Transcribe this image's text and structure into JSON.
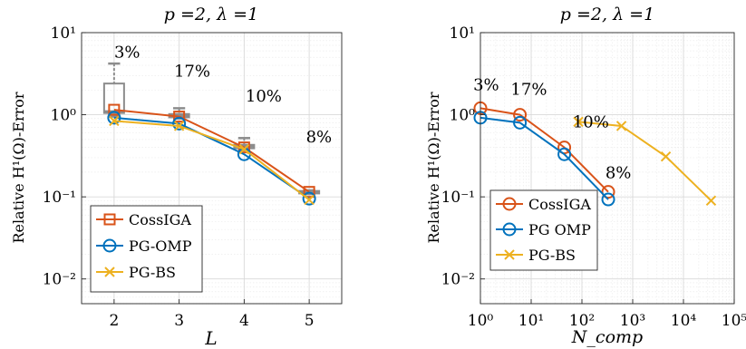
{
  "chart_data": [
    {
      "type": "line",
      "title": "p =2, λ =1",
      "xlabel": "L",
      "ylabel": "Relative H¹(Ω)-Error",
      "x_scale": "linear",
      "y_scale": "log",
      "xlim": [
        1.5,
        5.5
      ],
      "ylim": [
        0.005,
        10
      ],
      "x_ticks": [
        "2",
        "3",
        "4",
        "5"
      ],
      "y_ticks": [
        "10⁻²",
        "10⁻¹",
        "10⁰",
        "10¹"
      ],
      "grid": true,
      "legend_position": "bottom-left",
      "series": [
        {
          "name": "CossIGA",
          "color": "#d95319",
          "marker": "square",
          "x": [
            2,
            3,
            4,
            5
          ],
          "y": [
            1.15,
            0.95,
            0.4,
            0.115
          ]
        },
        {
          "name": "PG-OMP",
          "color": "#0072bd",
          "marker": "circle",
          "x": [
            2,
            3,
            4,
            5
          ],
          "y": [
            0.92,
            0.78,
            0.33,
            0.095
          ]
        },
        {
          "name": "PG-BS",
          "color": "#edb120",
          "marker": "x",
          "x": [
            2,
            3,
            4,
            5
          ],
          "y": [
            0.84,
            0.73,
            0.38,
            0.092
          ]
        }
      ],
      "boxplots": [
        {
          "x": 2,
          "whisker_low": 0.95,
          "q1": 1.05,
          "median": 1.1,
          "q3": 2.4,
          "whisker_high": 4.2
        },
        {
          "x": 3,
          "whisker_low": 0.9,
          "q1": 0.93,
          "median": 0.97,
          "q3": 1.02,
          "whisker_high": 1.2
        },
        {
          "x": 4,
          "whisker_low": 0.37,
          "q1": 0.39,
          "median": 0.41,
          "q3": 0.43,
          "whisker_high": 0.52
        },
        {
          "x": 5,
          "whisker_low": 0.108,
          "q1": 0.11,
          "median": 0.113,
          "q3": 0.118,
          "whisker_high": 0.12
        }
      ],
      "annotations": [
        {
          "text": "3%",
          "x": 2.2,
          "y": 5.0
        },
        {
          "text": "17%",
          "x": 3.2,
          "y": 2.9
        },
        {
          "text": "10%",
          "x": 4.3,
          "y": 1.45
        },
        {
          "text": "8%",
          "x": 5.15,
          "y": 0.46
        }
      ]
    },
    {
      "type": "line",
      "title": "p =2, λ =1",
      "xlabel": "N_comp",
      "ylabel": "Relative H¹(Ω)-Error",
      "x_scale": "log",
      "y_scale": "log",
      "xlim": [
        1,
        100000
      ],
      "ylim": [
        0.005,
        10
      ],
      "x_ticks": [
        "10⁰",
        "10¹",
        "10²",
        "10³",
        "10⁴",
        "10⁵"
      ],
      "y_ticks": [
        "10⁻²",
        "10⁻¹",
        "10⁰",
        "10¹"
      ],
      "grid": true,
      "legend_position": "bottom-left",
      "series": [
        {
          "name": "CossIGA",
          "color": "#d95319",
          "marker": "circle",
          "x": [
            1,
            6,
            45,
            330
          ],
          "y": [
            1.2,
            1.0,
            0.4,
            0.115
          ]
        },
        {
          "name": "PG OMP",
          "color": "#0072bd",
          "marker": "circle",
          "x": [
            1,
            6,
            45,
            330
          ],
          "y": [
            0.92,
            0.8,
            0.33,
            0.093
          ]
        },
        {
          "name": "PG-BS",
          "color": "#edb120",
          "marker": "x",
          "x": [
            85,
            600,
            4500,
            35000
          ],
          "y": [
            0.82,
            0.73,
            0.31,
            0.09
          ]
        }
      ],
      "annotations": [
        {
          "text": "3%",
          "x": 1.3,
          "y": 2.0
        },
        {
          "text": "17%",
          "x": 9,
          "y": 1.75
        },
        {
          "text": "10%",
          "x": 150,
          "y": 0.7
        },
        {
          "text": "8%",
          "x": 520,
          "y": 0.17
        }
      ]
    }
  ]
}
